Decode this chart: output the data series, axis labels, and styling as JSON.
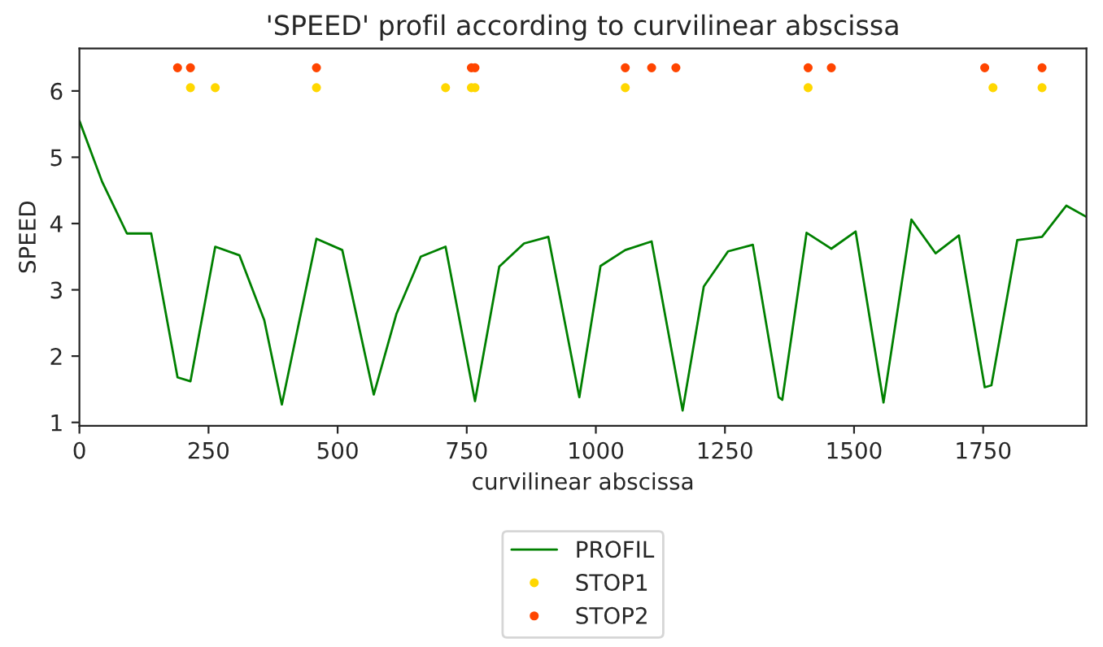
{
  "chart_data": {
    "type": "line",
    "title": "'SPEED' profil according to curvilinear abscissa",
    "xlabel": "curvilinear abscissa",
    "ylabel": "SPEED",
    "xlim": [
      0,
      1950
    ],
    "xticks": [
      0,
      250,
      500,
      750,
      1000,
      1250,
      1500,
      1750
    ],
    "ylim": [
      0.95,
      6.64
    ],
    "yticks": [
      1,
      2,
      3,
      4,
      5,
      6
    ],
    "grid": false,
    "legend": "bottom",
    "series": [
      {
        "name": "PROFIL",
        "color": "#008000",
        "marker": "none",
        "x": [
          0,
          44,
          92,
          139,
          190,
          215,
          263,
          310,
          358,
          392,
          459,
          509,
          570,
          614,
          661,
          709,
          766,
          813,
          861,
          908,
          968,
          1009,
          1057,
          1108,
          1168,
          1209,
          1256,
          1304,
          1354,
          1361,
          1408,
          1456,
          1503,
          1557,
          1611,
          1658,
          1703,
          1753,
          1766,
          1816,
          1864,
          1911,
          1950
        ],
        "values": [
          5.55,
          4.63,
          3.85,
          3.85,
          1.68,
          1.62,
          3.65,
          3.52,
          2.54,
          1.27,
          3.77,
          3.6,
          1.42,
          2.64,
          3.5,
          3.65,
          1.32,
          3.35,
          3.7,
          3.8,
          1.38,
          3.36,
          3.6,
          3.73,
          1.18,
          3.05,
          3.58,
          3.68,
          1.38,
          1.34,
          3.86,
          3.62,
          3.88,
          1.3,
          4.06,
          3.55,
          3.82,
          1.53,
          1.56,
          3.75,
          3.8,
          4.27,
          4.1
        ]
      },
      {
        "name": "STOP1",
        "type": "scatter",
        "color": "#ffd700",
        "marker": "circle",
        "x": [
          215,
          263,
          459,
          709,
          759,
          766,
          1057,
          1411,
          1769,
          1864
        ],
        "values": [
          6.05,
          6.05,
          6.05,
          6.05,
          6.05,
          6.05,
          6.05,
          6.05,
          6.05,
          6.05
        ]
      },
      {
        "name": "STOP2",
        "type": "scatter",
        "color": "#ff4500",
        "marker": "circle",
        "x": [
          190,
          215,
          459,
          759,
          766,
          1057,
          1108,
          1155,
          1411,
          1456,
          1753,
          1864
        ],
        "values": [
          6.35,
          6.35,
          6.35,
          6.35,
          6.35,
          6.35,
          6.35,
          6.35,
          6.35,
          6.35,
          6.35,
          6.35
        ]
      }
    ]
  }
}
